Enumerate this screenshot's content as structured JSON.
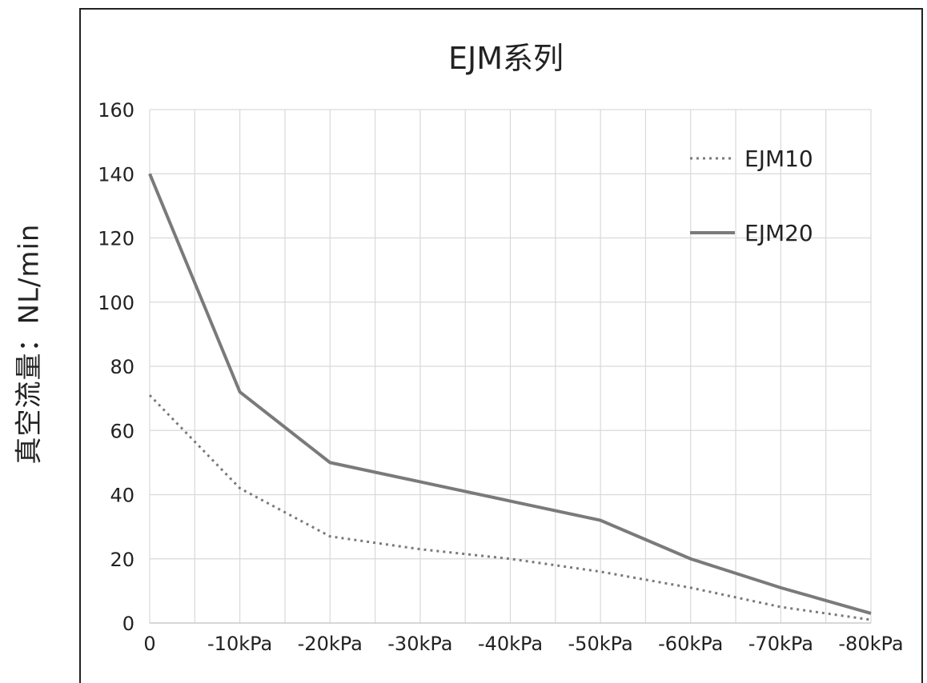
{
  "chart_data": {
    "type": "line",
    "title": "EJM系列",
    "xlabel": "",
    "ylabel": "真空流量：NL/min",
    "categories": [
      "0",
      "-10kPa",
      "-20kPa",
      "-30kPa",
      "-40kPa",
      "-50kPa",
      "-60kPa",
      "-70kPa",
      "-80kPa"
    ],
    "ylim": [
      0,
      160
    ],
    "yticks": [
      0,
      20,
      40,
      60,
      80,
      100,
      120,
      140,
      160
    ],
    "grid": true,
    "legend_position": "top-right",
    "series": [
      {
        "name": "EJM10",
        "values": [
          71,
          42,
          27,
          23,
          20,
          16,
          11,
          5,
          1
        ],
        "style": "dotted",
        "color": "#7a7a7a"
      },
      {
        "name": "EJM20",
        "values": [
          140,
          72,
          50,
          44,
          38,
          32,
          20,
          11,
          3
        ],
        "style": "solid",
        "color": "#7a7a7a"
      }
    ]
  }
}
